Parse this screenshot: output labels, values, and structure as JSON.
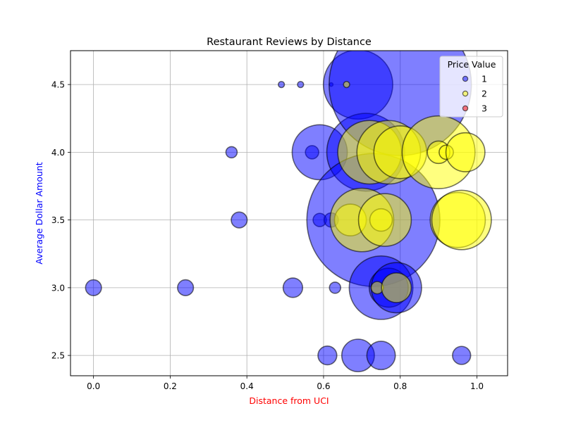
{
  "chart_data": {
    "type": "scatter",
    "title": "Restaurant Reviews by Distance",
    "xlabel": "Distance from UCI",
    "ylabel": "Average Dollar Amount",
    "xlabel_color": "#ff0000",
    "ylabel_color": "#0000ff",
    "xlim": [
      -0.06,
      1.08
    ],
    "ylim": [
      2.35,
      4.75
    ],
    "x_ticks": [
      0.0,
      0.2,
      0.4,
      0.6,
      0.8,
      1.0
    ],
    "x_tick_labels": [
      "0.0",
      "0.2",
      "0.4",
      "0.6",
      "0.8",
      "1.0"
    ],
    "y_ticks": [
      2.5,
      3.0,
      3.5,
      4.0,
      4.5
    ],
    "y_tick_labels": [
      "2.5",
      "3.0",
      "3.5",
      "4.0",
      "4.5"
    ],
    "grid": true,
    "legend": {
      "title": "Price Value",
      "position": "top-right"
    },
    "marker_alpha": 0.5,
    "series": [
      {
        "name": "1",
        "color": "#0000ff",
        "points": [
          {
            "x": 0.0,
            "y": 3.0,
            "size": 1
          },
          {
            "x": 0.24,
            "y": 3.0,
            "size": 1
          },
          {
            "x": 0.36,
            "y": 4.0,
            "size": 0.5
          },
          {
            "x": 0.38,
            "y": 3.5,
            "size": 1
          },
          {
            "x": 0.49,
            "y": 4.5,
            "size": 0.15
          },
          {
            "x": 0.52,
            "y": 3.0,
            "size": 1.5
          },
          {
            "x": 0.54,
            "y": 4.5,
            "size": 0.15
          },
          {
            "x": 0.57,
            "y": 4.0,
            "size": 0.7
          },
          {
            "x": 0.59,
            "y": 4.0,
            "size": 12
          },
          {
            "x": 0.59,
            "y": 3.5,
            "size": 0.7
          },
          {
            "x": 0.61,
            "y": 2.5,
            "size": 1.4
          },
          {
            "x": 0.62,
            "y": 4.5,
            "size": 0.05
          },
          {
            "x": 0.62,
            "y": 3.5,
            "size": 0.8
          },
          {
            "x": 0.63,
            "y": 3.0,
            "size": 0.5
          },
          {
            "x": 0.69,
            "y": 4.5,
            "size": 19
          },
          {
            "x": 0.69,
            "y": 2.5,
            "size": 4.2
          },
          {
            "x": 0.71,
            "y": 4.0,
            "size": 24
          },
          {
            "x": 0.73,
            "y": 3.5,
            "size": 70
          },
          {
            "x": 0.75,
            "y": 3.0,
            "size": 16
          },
          {
            "x": 0.75,
            "y": 2.5,
            "size": 3.2
          },
          {
            "x": 0.77,
            "y": 3.0,
            "size": 6
          },
          {
            "x": 0.79,
            "y": 3.0,
            "size": 10
          },
          {
            "x": 0.8,
            "y": 4.5,
            "size": 80
          },
          {
            "x": 0.96,
            "y": 2.5,
            "size": 1.3
          }
        ]
      },
      {
        "name": "2",
        "color": "#ffff00",
        "points": [
          {
            "x": 0.66,
            "y": 4.5,
            "size": 0.15
          },
          {
            "x": 0.67,
            "y": 3.5,
            "size": 4
          },
          {
            "x": 0.7,
            "y": 3.5,
            "size": 16
          },
          {
            "x": 0.72,
            "y": 4.0,
            "size": 16
          },
          {
            "x": 0.74,
            "y": 3.0,
            "size": 0.6
          },
          {
            "x": 0.75,
            "y": 3.5,
            "size": 2
          },
          {
            "x": 0.76,
            "y": 3.5,
            "size": 11
          },
          {
            "x": 0.77,
            "y": 4.0,
            "size": 16
          },
          {
            "x": 0.79,
            "y": 3.0,
            "size": 3.5
          },
          {
            "x": 0.8,
            "y": 4.0,
            "size": 11
          },
          {
            "x": 0.9,
            "y": 4.0,
            "size": 21
          },
          {
            "x": 0.9,
            "y": 4.0,
            "size": 2
          },
          {
            "x": 0.92,
            "y": 4.0,
            "size": 0.8
          },
          {
            "x": 0.97,
            "y": 4.0,
            "size": 6
          },
          {
            "x": 0.95,
            "y": 3.5,
            "size": 12
          },
          {
            "x": 0.96,
            "y": 3.5,
            "size": 14
          }
        ]
      },
      {
        "name": "3",
        "color": "#ff0000",
        "points": []
      }
    ]
  }
}
